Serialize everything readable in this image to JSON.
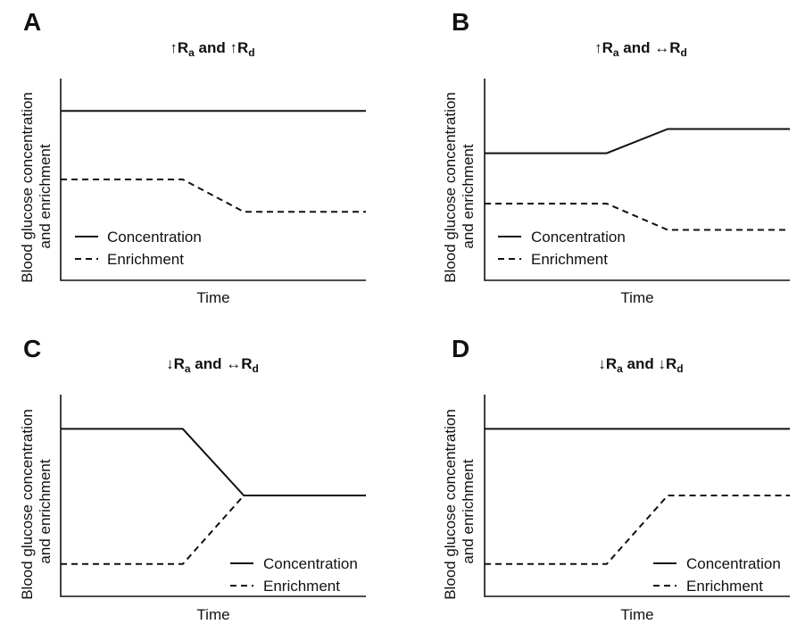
{
  "chart_data": [
    {
      "type": "line",
      "panel_label": "A",
      "title": {
        "up1": "↑",
        "r1": "R",
        "s1": "a",
        "mid": " and ",
        "up2": "↑",
        "r2": "R",
        "s2": "d"
      },
      "xlabel": "Time",
      "ylabel": [
        "Blood glucose concentration",
        "and enrichment"
      ],
      "xlim": [
        0,
        1
      ],
      "ylim": [
        0,
        1
      ],
      "grid": false,
      "legend_position": "bottom-left",
      "series": [
        {
          "name": "Concentration",
          "style": "solid",
          "points": [
            [
              0,
              0.84
            ],
            [
              1,
              0.84
            ]
          ]
        },
        {
          "name": "Enrichment",
          "style": "dashed",
          "points": [
            [
              0,
              0.5
            ],
            [
              0.4,
              0.5
            ],
            [
              0.6,
              0.34
            ],
            [
              1,
              0.34
            ]
          ]
        }
      ]
    },
    {
      "type": "line",
      "panel_label": "B",
      "title": {
        "up1": "↑",
        "r1": "R",
        "s1": "a",
        "mid": " and ",
        "up2": "↔",
        "r2": "R",
        "s2": "d"
      },
      "xlabel": "Time",
      "ylabel": [
        "Blood glucose concentration",
        "and enrichment"
      ],
      "xlim": [
        0,
        1
      ],
      "ylim": [
        0,
        1
      ],
      "grid": false,
      "legend_position": "bottom-left",
      "series": [
        {
          "name": "Concentration",
          "style": "solid",
          "points": [
            [
              0,
              0.63
            ],
            [
              0.4,
              0.63
            ],
            [
              0.6,
              0.75
            ],
            [
              1,
              0.75
            ]
          ]
        },
        {
          "name": "Enrichment",
          "style": "dashed",
          "points": [
            [
              0,
              0.38
            ],
            [
              0.4,
              0.38
            ],
            [
              0.6,
              0.25
            ],
            [
              1,
              0.25
            ]
          ]
        }
      ]
    },
    {
      "type": "line",
      "panel_label": "C",
      "title": {
        "up1": "↓",
        "r1": "R",
        "s1": "a",
        "mid": " and ",
        "up2": "↔",
        "r2": "R",
        "s2": "d"
      },
      "xlabel": "Time",
      "ylabel": [
        "Blood glucose concentration",
        "and enrichment"
      ],
      "xlim": [
        0,
        1
      ],
      "ylim": [
        0,
        1
      ],
      "grid": false,
      "legend_position": "bottom-right",
      "series": [
        {
          "name": "Concentration",
          "style": "solid",
          "points": [
            [
              0,
              0.83
            ],
            [
              0.4,
              0.83
            ],
            [
              0.6,
              0.5
            ],
            [
              1,
              0.5
            ]
          ]
        },
        {
          "name": "Enrichment",
          "style": "dashed",
          "points": [
            [
              0,
              0.16
            ],
            [
              0.4,
              0.16
            ],
            [
              0.6,
              0.5
            ],
            [
              1,
              0.5
            ]
          ]
        }
      ]
    },
    {
      "type": "line",
      "panel_label": "D",
      "title": {
        "up1": "↓",
        "r1": "R",
        "s1": "a",
        "mid": " and ",
        "up2": "↓",
        "r2": "R",
        "s2": "d"
      },
      "xlabel": "Time",
      "ylabel": [
        "Blood glucose concentration",
        "and enrichment"
      ],
      "xlim": [
        0,
        1
      ],
      "ylim": [
        0,
        1
      ],
      "grid": false,
      "legend_position": "bottom-right",
      "series": [
        {
          "name": "Concentration",
          "style": "solid",
          "points": [
            [
              0,
              0.83
            ],
            [
              1,
              0.83
            ]
          ]
        },
        {
          "name": "Enrichment",
          "style": "dashed",
          "points": [
            [
              0,
              0.16
            ],
            [
              0.4,
              0.16
            ],
            [
              0.6,
              0.5
            ],
            [
              1,
              0.5
            ]
          ]
        }
      ]
    }
  ]
}
